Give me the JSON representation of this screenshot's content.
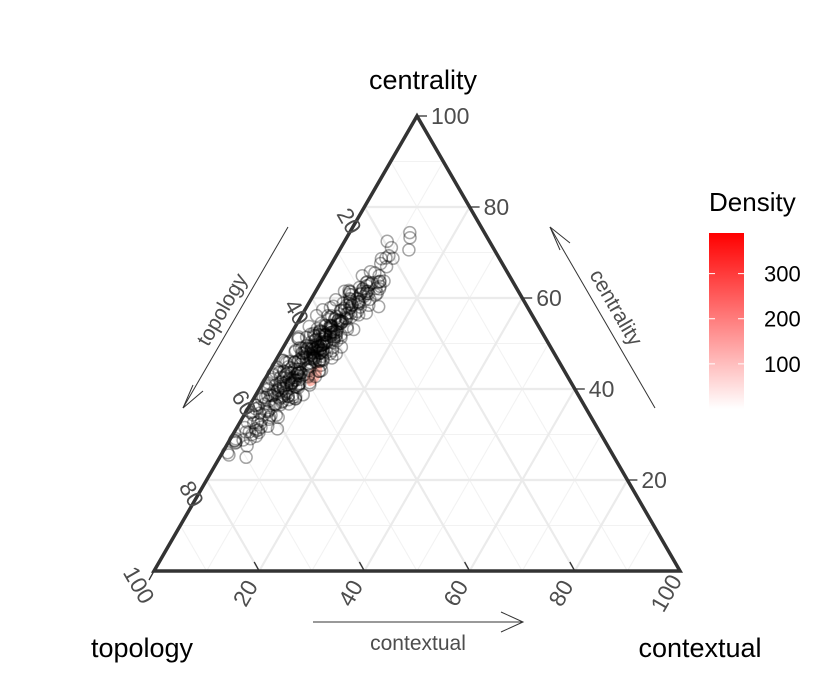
{
  "chart_data": {
    "type": "scatter",
    "subtype": "ternary",
    "axes": {
      "top": "centrality",
      "left": "topology",
      "right": "contextual"
    },
    "axis_arrow_labels": {
      "left": "topology",
      "right": "centrality",
      "bottom": "contextual"
    },
    "tick_values": [
      20,
      40,
      60,
      80,
      100
    ],
    "tick_labels": [
      "20",
      "40",
      "60",
      "80",
      "100"
    ],
    "grid": true,
    "legend": {
      "title": "Density",
      "position": "right",
      "ticks": [
        100,
        200,
        300
      ],
      "tick_labels": [
        "100",
        "200",
        "300"
      ],
      "range": [
        0,
        390
      ],
      "color_low": "#ffffff",
      "color_high": "#ff0000"
    },
    "point_color": "#000000",
    "point_style": "open-circle",
    "density_peak": {
      "centrality": 43,
      "topology": 48,
      "contextual": 9
    },
    "points_summary": {
      "contextual_range": [
        1,
        16
      ],
      "centrality_range": [
        25,
        75
      ],
      "count_approx": 400
    }
  }
}
